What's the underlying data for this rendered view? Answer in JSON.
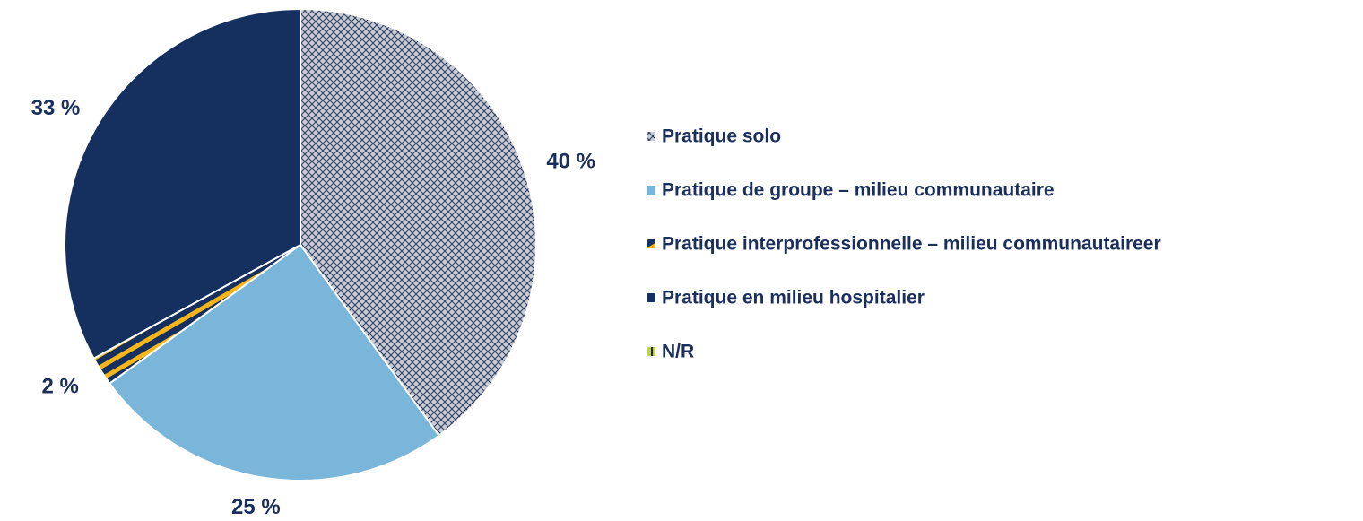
{
  "chart_data": {
    "type": "pie",
    "categories": [
      "Pratique solo",
      "Pratique de groupe – milieu communautaire",
      "Pratique interprofessionnelle – milieu communautaireer",
      "Pratique en milieu hospitalier",
      "N/R"
    ],
    "values": [
      40,
      25,
      2,
      33,
      0
    ],
    "value_labels": [
      "40 %",
      "25 %",
      "2 %",
      "33 %",
      null
    ],
    "colors": [
      "url(#pSolo)",
      "#7ab6d9",
      "url(#pStripe)",
      "#15305f",
      "url(#pNR)"
    ]
  }
}
